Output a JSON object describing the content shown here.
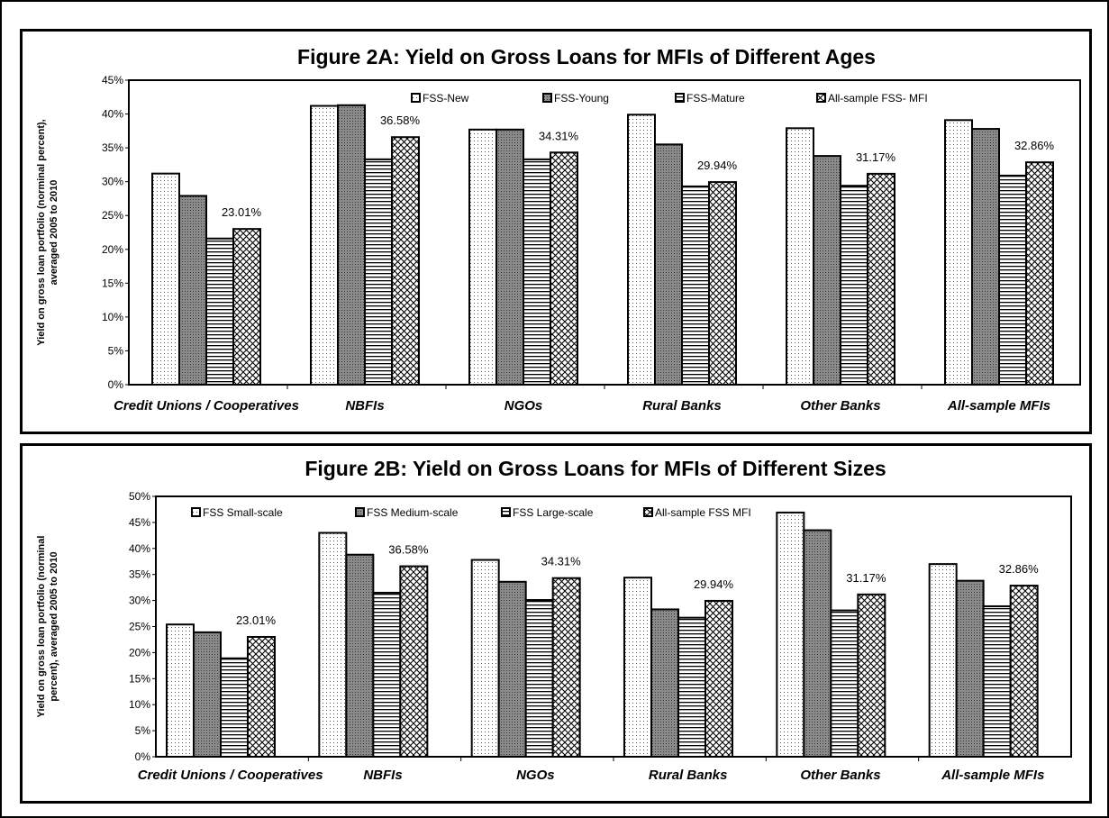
{
  "chart_data": [
    {
      "type": "bar",
      "title": "Figure 2A: Yield on Gross Loans for MFIs of Different Ages",
      "xlabel": "",
      "ylabel_lines": [
        "Yield on gross loan portfolio (norminal percent),",
        "averaged  2005 to 2010"
      ],
      "categories": [
        "Credit Unions / Cooperatives",
        "NBFIs",
        "NGOs",
        "Rural Banks",
        "Other Banks",
        "All-sample MFIs"
      ],
      "ylim": [
        0,
        45
      ],
      "yticks": [
        0,
        5,
        10,
        15,
        20,
        25,
        30,
        35,
        40,
        45
      ],
      "ytick_labels": [
        "0%",
        "5%",
        "10%",
        "15%",
        "20%",
        "25%",
        "30%",
        "35%",
        "40%",
        "45%"
      ],
      "legend_position": "top",
      "series": [
        {
          "name": "FSS-New",
          "pattern": "dots",
          "color": "#f0f0f0",
          "values": [
            31.2,
            41.2,
            37.7,
            39.9,
            37.9,
            39.1
          ]
        },
        {
          "name": "FSS-Young",
          "pattern": "grey",
          "color": "#808080",
          "values": [
            27.9,
            41.3,
            37.7,
            35.5,
            33.8,
            37.8
          ]
        },
        {
          "name": "FSS-Mature",
          "pattern": "hlines",
          "color": "#ffffff",
          "values": [
            21.6,
            33.3,
            33.3,
            29.3,
            29.4,
            30.9
          ]
        },
        {
          "name": "All-sample FSS- MFI",
          "pattern": "crosshatch",
          "color": "#ffffff",
          "values": [
            23.01,
            36.58,
            34.31,
            29.94,
            31.17,
            32.86
          ]
        }
      ],
      "data_labels": [
        "23.01%",
        "36.58%",
        "34.31%",
        "29.94%",
        "31.17%",
        "32.86%"
      ]
    },
    {
      "type": "bar",
      "title": "Figure 2B: Yield on Gross Loans for MFIs of Different Sizes",
      "xlabel": "",
      "ylabel_lines": [
        "Yield on gross loan portfolio (norminal",
        "percent), averaged 2005 to 2010"
      ],
      "categories": [
        "Credit Unions / Cooperatives",
        "NBFIs",
        "NGOs",
        "Rural Banks",
        "Other Banks",
        "All-sample MFIs"
      ],
      "ylim": [
        0,
        50
      ],
      "yticks": [
        0,
        5,
        10,
        15,
        20,
        25,
        30,
        35,
        40,
        45,
        50
      ],
      "ytick_labels": [
        "0%",
        "5%",
        "10%",
        "15%",
        "20%",
        "25%",
        "30%",
        "35%",
        "40%",
        "45%",
        "50%"
      ],
      "legend_position": "top",
      "series": [
        {
          "name": "FSS Small-scale",
          "pattern": "dots",
          "color": "#f0f0f0",
          "values": [
            25.4,
            43.0,
            37.8,
            34.4,
            46.9,
            37.0
          ]
        },
        {
          "name": "FSS Medium-scale",
          "pattern": "grey",
          "color": "#808080",
          "values": [
            23.9,
            38.8,
            33.6,
            28.3,
            43.5,
            33.8
          ]
        },
        {
          "name": "FSS Large-scale",
          "pattern": "hlines",
          "color": "#ffffff",
          "values": [
            18.9,
            31.5,
            30.1,
            26.7,
            28.1,
            28.9
          ]
        },
        {
          "name": "All-sample FSS MFI",
          "pattern": "crosshatch",
          "color": "#ffffff",
          "values": [
            23.01,
            36.58,
            34.31,
            29.94,
            31.17,
            32.86
          ]
        }
      ],
      "data_labels": [
        "23.01%",
        "36.58%",
        "34.31%",
        "29.94%",
        "31.17%",
        "32.86%"
      ]
    }
  ]
}
